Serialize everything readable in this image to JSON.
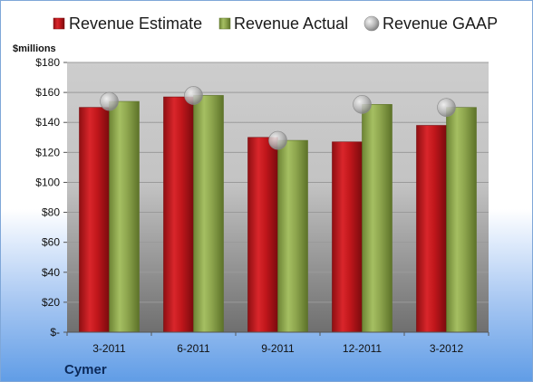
{
  "chart_data": {
    "type": "bar",
    "title": "",
    "xlabel": "",
    "ylabel": "$millions",
    "company": "Cymer",
    "categories": [
      "3-2011",
      "6-2011",
      "9-2011",
      "12-2011",
      "3-2012"
    ],
    "series": [
      {
        "name": "Revenue Estimate",
        "kind": "bar",
        "color": "#c0161b",
        "values": [
          150,
          157,
          130,
          127,
          138
        ]
      },
      {
        "name": "Revenue Actual",
        "kind": "bar",
        "color": "#8ea64e",
        "values": [
          154,
          158,
          128,
          152,
          150
        ]
      },
      {
        "name": "Revenue GAAP",
        "kind": "marker",
        "color": "#b8b8b8",
        "values": [
          154,
          158,
          128,
          152,
          150
        ]
      }
    ],
    "ylim": [
      0,
      180
    ],
    "y_ticks": [
      0,
      20,
      40,
      60,
      80,
      100,
      120,
      140,
      160,
      180
    ],
    "y_tick_labels": [
      "$-",
      "$20",
      "$40",
      "$60",
      "$80",
      "$100",
      "$120",
      "$140",
      "$160",
      "$180"
    ],
    "grid": true,
    "legend": "top"
  }
}
